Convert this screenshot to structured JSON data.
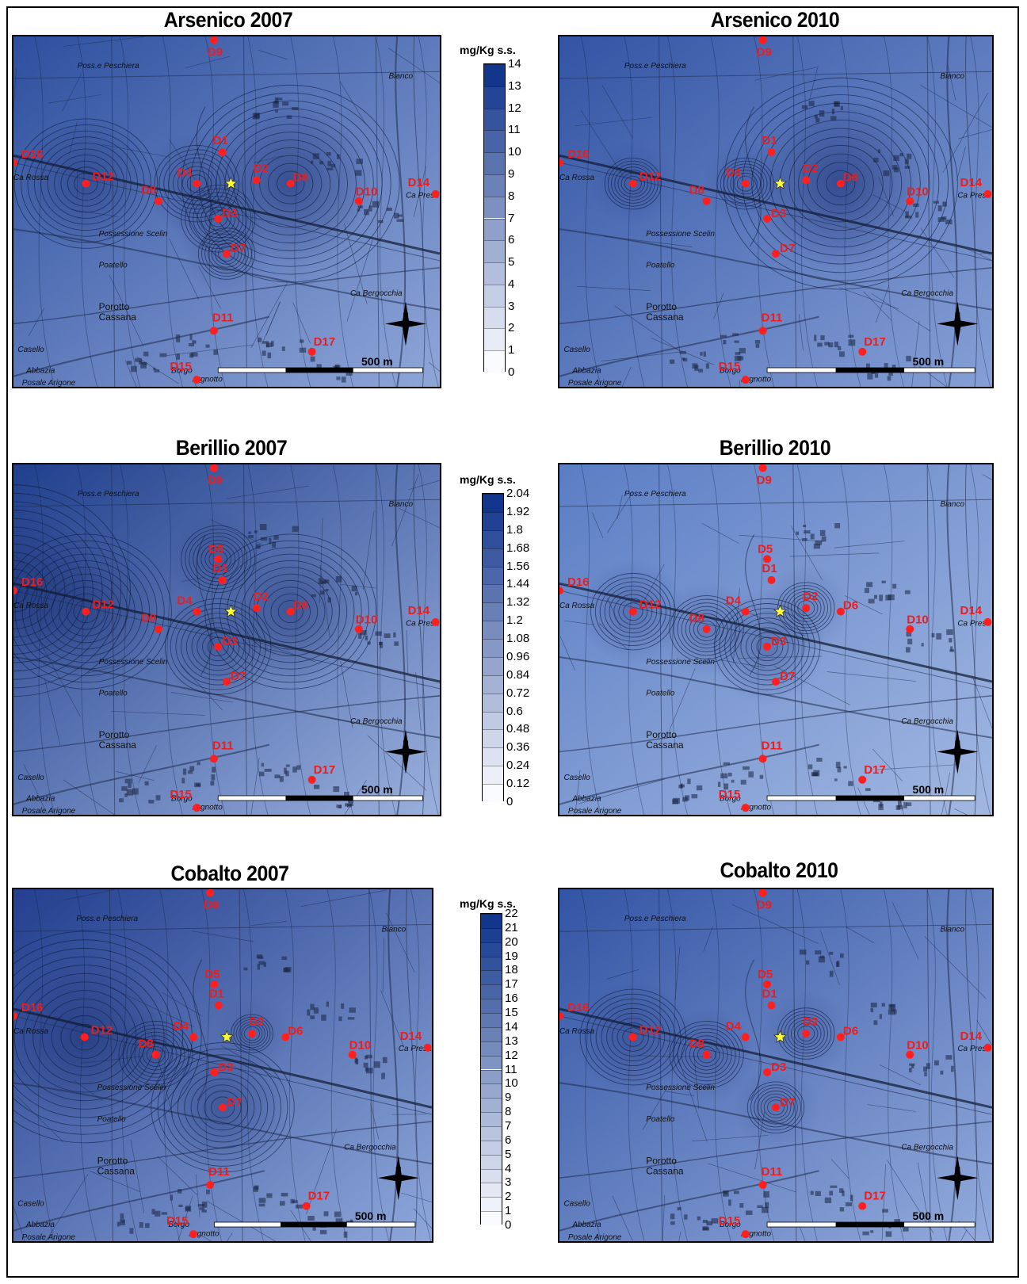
{
  "panels": [
    {
      "title": "Arsenico 2007",
      "gradient": [
        "#2d4f9e",
        "#8fa6d8"
      ],
      "hotspots": [
        {
          "site": "D12",
          "strength": 1
        },
        {
          "site": "D6",
          "strength": 1.3
        },
        {
          "site": "D4",
          "strength": 0.7
        },
        {
          "site": "D3",
          "strength": 0.6
        },
        {
          "site": "D7",
          "strength": 0.5
        }
      ]
    },
    {
      "title": "Arsenico 2010",
      "gradient": [
        "#3354a4",
        "#86a0d6"
      ],
      "hotspots": [
        {
          "site": "D6",
          "strength": 1.4
        },
        {
          "site": "D4",
          "strength": 0.5
        },
        {
          "site": "D12",
          "strength": 0.5
        }
      ]
    },
    {
      "title": "Berillio 2007",
      "gradient": [
        "#203f8c",
        "#9ab0dd"
      ],
      "hotspots": [
        {
          "site": "D16",
          "strength": 1.4
        },
        {
          "site": "D12",
          "strength": 1.1
        },
        {
          "site": "D6",
          "strength": 1.1
        },
        {
          "site": "D5",
          "strength": 0.6
        },
        {
          "site": "D3",
          "strength": 0.8
        }
      ]
    },
    {
      "title": "Berillio 2010",
      "gradient": [
        "#5b7dc4",
        "#a2b8e2"
      ],
      "hotspots": [
        {
          "site": "D12",
          "strength": 0.7
        },
        {
          "site": "D3",
          "strength": 0.8
        },
        {
          "site": "D8",
          "strength": 0.6
        },
        {
          "site": "D2",
          "strength": 0.5
        }
      ]
    },
    {
      "title": "Cobalto 2007",
      "gradient": [
        "#233f8e",
        "#8ea7da"
      ],
      "hotspots": [
        {
          "site": "D12",
          "strength": 1.4
        },
        {
          "site": "D7",
          "strength": 1.0
        },
        {
          "site": "D8",
          "strength": 0.6
        },
        {
          "site": "D2",
          "strength": 0.4
        }
      ]
    },
    {
      "title": "Cobalto 2010",
      "gradient": [
        "#3354a4",
        "#93abdc"
      ],
      "hotspots": [
        {
          "site": "D12",
          "strength": 0.8
        },
        {
          "site": "D8",
          "strength": 0.6
        },
        {
          "site": "D2",
          "strength": 0.5
        },
        {
          "site": "D7",
          "strength": 0.5
        }
      ]
    }
  ],
  "legends": [
    {
      "unit": "mg/Kg s.s.",
      "ticks": [
        "14",
        "13",
        "12",
        "11",
        "10",
        "9",
        "8",
        "7",
        "6",
        "5",
        "4",
        "3",
        "2",
        "1",
        "0"
      ]
    },
    {
      "unit": "mg/Kg s.s.",
      "ticks": [
        "2.04",
        "1.92",
        "1.8",
        "1.68",
        "1.56",
        "1.44",
        "1.32",
        "1.2",
        "1.08",
        "0.96",
        "0.84",
        "0.72",
        "0.6",
        "0.48",
        "0.36",
        "0.24",
        "0.12",
        "0"
      ]
    },
    {
      "unit": "mg/Kg s.s.",
      "ticks": [
        "22",
        "21",
        "20",
        "19",
        "18",
        "17",
        "16",
        "15",
        "14",
        "13",
        "12",
        "11",
        "10",
        "9",
        "8",
        "7",
        "6",
        "5",
        "4",
        "3",
        "2",
        "1",
        "0"
      ]
    }
  ],
  "map": {
    "sites": [
      "D1",
      "D2",
      "D3",
      "D4",
      "D5",
      "D6",
      "D7",
      "D8",
      "D9",
      "D10",
      "D11",
      "D12",
      "D14",
      "D15",
      "D16",
      "D17"
    ],
    "places": [
      "Poss.e Peschiera",
      "Ca Rossa",
      "Possessione Scelin",
      "Poatello",
      "Porotto",
      "Cassana",
      "Ca Bergocchia",
      "Casello",
      "Abbazia",
      "Borgo",
      "Argnotto",
      "Ca Presa",
      "Bianco",
      "Possessione Scelina",
      "Posale Arigone"
    ],
    "scale_label": "500 m"
  },
  "colors": {
    "site_marker": "#ff1f1f",
    "site_label": "#ee1c1c",
    "star": "#ffff33"
  }
}
